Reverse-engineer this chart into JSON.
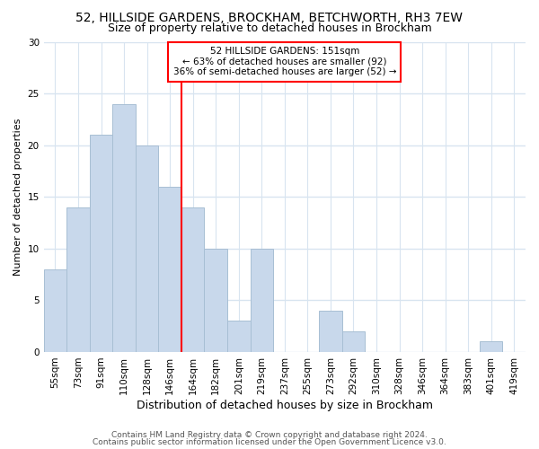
{
  "title1": "52, HILLSIDE GARDENS, BROCKHAM, BETCHWORTH, RH3 7EW",
  "title2": "Size of property relative to detached houses in Brockham",
  "xlabel": "Distribution of detached houses by size in Brockham",
  "ylabel": "Number of detached properties",
  "categories": [
    "55sqm",
    "73sqm",
    "91sqm",
    "110sqm",
    "128sqm",
    "146sqm",
    "164sqm",
    "182sqm",
    "201sqm",
    "219sqm",
    "237sqm",
    "255sqm",
    "273sqm",
    "292sqm",
    "310sqm",
    "328sqm",
    "346sqm",
    "364sqm",
    "383sqm",
    "401sqm",
    "419sqm"
  ],
  "values": [
    8,
    14,
    21,
    24,
    20,
    16,
    14,
    10,
    3,
    10,
    0,
    0,
    4,
    2,
    0,
    0,
    0,
    0,
    0,
    1,
    0
  ],
  "bar_color": "#c8d8eb",
  "bar_edge_color": "#a8bfd4",
  "vline_position": 5.5,
  "annotation_text": "52 HILLSIDE GARDENS: 151sqm\n← 63% of detached houses are smaller (92)\n36% of semi-detached houses are larger (52) →",
  "annotation_box_color": "white",
  "annotation_box_edge": "red",
  "vline_color": "red",
  "footer1": "Contains HM Land Registry data © Crown copyright and database right 2024.",
  "footer2": "Contains public sector information licensed under the Open Government Licence v3.0.",
  "ylim": [
    0,
    30
  ],
  "yticks": [
    0,
    5,
    10,
    15,
    20,
    25,
    30
  ],
  "background_color": "#ffffff",
  "plot_background": "#ffffff",
  "grid_color": "#d8e4f0",
  "title1_fontsize": 10,
  "title2_fontsize": 9,
  "xlabel_fontsize": 9,
  "ylabel_fontsize": 8,
  "tick_fontsize": 7.5,
  "annot_fontsize": 7.5,
  "footer_fontsize": 6.5
}
